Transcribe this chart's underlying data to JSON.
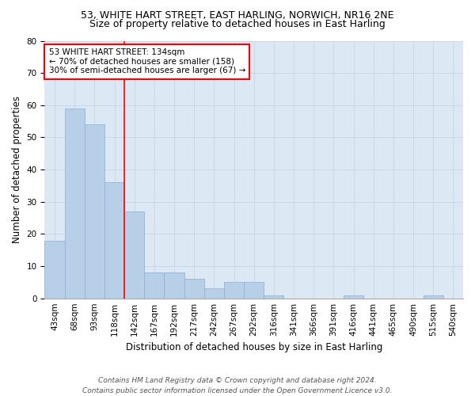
{
  "title1": "53, WHITE HART STREET, EAST HARLING, NORWICH, NR16 2NE",
  "title2": "Size of property relative to detached houses in East Harling",
  "xlabel": "Distribution of detached houses by size in East Harling",
  "ylabel": "Number of detached properties",
  "categories": [
    "43sqm",
    "68sqm",
    "93sqm",
    "118sqm",
    "142sqm",
    "167sqm",
    "192sqm",
    "217sqm",
    "242sqm",
    "267sqm",
    "292sqm",
    "316sqm",
    "341sqm",
    "366sqm",
    "391sqm",
    "416sqm",
    "441sqm",
    "465sqm",
    "490sqm",
    "515sqm",
    "540sqm"
  ],
  "values": [
    18,
    59,
    54,
    36,
    27,
    8,
    8,
    6,
    3,
    5,
    5,
    1,
    0,
    0,
    0,
    1,
    0,
    0,
    0,
    1,
    0
  ],
  "bar_color": "#b8cfe8",
  "bar_edge_color": "#8aafd6",
  "grid_color": "#c8d8ea",
  "background_color": "#dce8f4",
  "red_line_index": 4,
  "annotation_line1": "53 WHITE HART STREET: 134sqm",
  "annotation_line2": "← 70% of detached houses are smaller (158)",
  "annotation_line3": "30% of semi-detached houses are larger (67) →",
  "ylim": [
    0,
    80
  ],
  "yticks": [
    0,
    10,
    20,
    30,
    40,
    50,
    60,
    70,
    80
  ],
  "footer": "Contains HM Land Registry data © Crown copyright and database right 2024.\nContains public sector information licensed under the Open Government Licence v3.0.",
  "title1_fontsize": 9,
  "title2_fontsize": 9,
  "ylabel_fontsize": 8.5,
  "xlabel_fontsize": 8.5,
  "tick_fontsize": 7.5,
  "annotation_fontsize": 7.5,
  "footer_fontsize": 6.5
}
